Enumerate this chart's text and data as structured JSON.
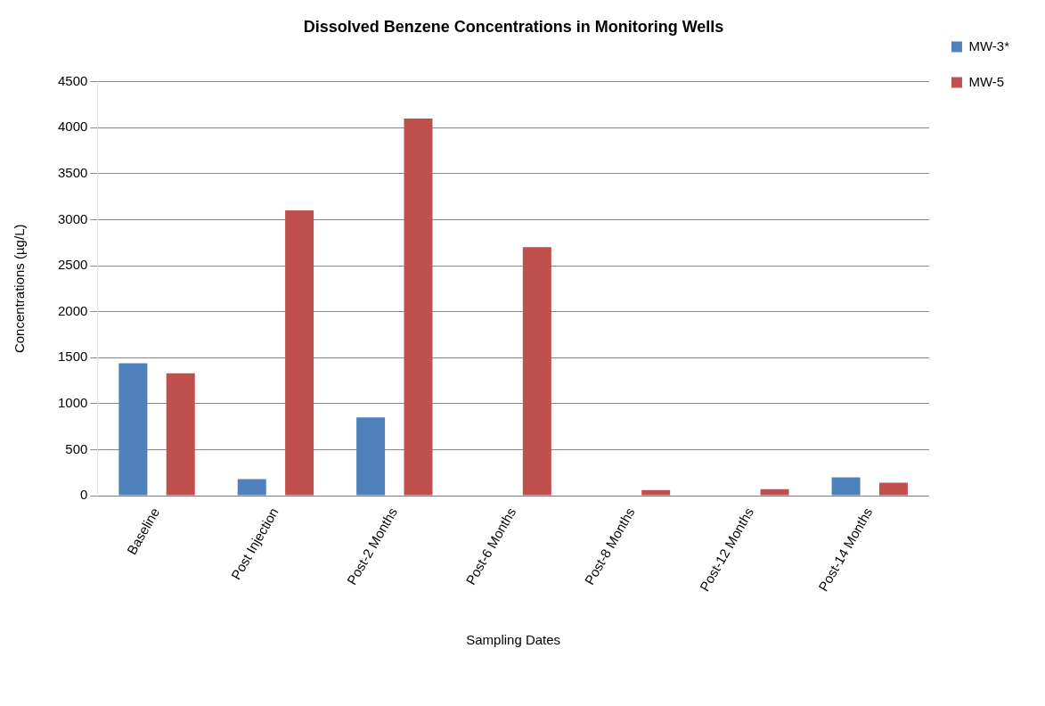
{
  "chart_data": {
    "type": "bar",
    "title": "Dissolved Benzene Concentrations in Monitoring Wells",
    "xlabel": "Sampling Dates",
    "ylabel": "Concentrations (µg/L)",
    "categories": [
      "Baseline",
      "Post Injection",
      "Post-2 Months",
      "Post-6 Months",
      "Post-8 Months",
      "Post-12 Months",
      "Post-14 Months"
    ],
    "series": [
      {
        "name": "MW-3*",
        "color": "#4f81bd",
        "values": [
          1440,
          180,
          850,
          0,
          0,
          0,
          200
        ]
      },
      {
        "name": "MW-5",
        "color": "#c0504d",
        "values": [
          1330,
          3100,
          4100,
          2700,
          60,
          70,
          140
        ]
      }
    ],
    "ylim": [
      0,
      4500
    ],
    "yticks": [
      0,
      500,
      1000,
      1500,
      2000,
      2500,
      3000,
      3500,
      4000,
      4500
    ],
    "grid": "y",
    "legend": "right"
  }
}
